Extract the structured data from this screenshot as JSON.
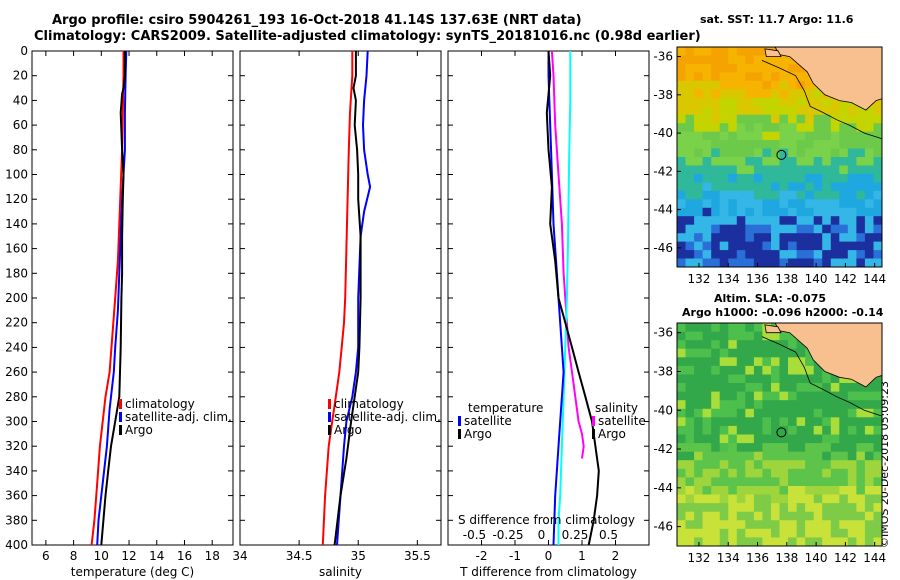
{
  "header": {
    "line1": "Argo profile: csiro 5904261_193 16-Oct-2018 41.14S 137.63E (NRT data)",
    "line2": "Climatology: CARS2009. Satellite-adjusted climatology: synTS_20181016.nc (0.98d earlier)"
  },
  "credit": "©IMOS 20-Dec-2018 05:09:23",
  "colors": {
    "climatology": "#ff0000",
    "satellite": "#0000ff",
    "argo": "#000000",
    "t_diff_clim": "#ff00ff",
    "t_diff_sat": "#00ffff",
    "land": "#f9c08f"
  },
  "chart_data": [
    {
      "type": "line",
      "id": "temperature",
      "xlabel": "temperature (deg C)",
      "xlim": [
        5,
        19.5
      ],
      "ylim": [
        0,
        400
      ],
      "xticks": [
        "6",
        "8",
        "10",
        "12",
        "14",
        "16",
        "18"
      ],
      "xtick_values": [
        6,
        8,
        10,
        12,
        14,
        16,
        18
      ],
      "yticks": [
        "0",
        "20",
        "40",
        "60",
        "80",
        "100",
        "120",
        "140",
        "160",
        "180",
        "200",
        "220",
        "240",
        "260",
        "280",
        "300",
        "320",
        "340",
        "360",
        "380",
        "400"
      ],
      "legend": [
        "climatology",
        "satellite-adj. clim.",
        "Argo"
      ],
      "series": [
        {
          "name": "climatology",
          "color": "#ff0000",
          "x": [
            11.6,
            11.6,
            11.55,
            11.5,
            11.4,
            11.3,
            11.2,
            11.0,
            10.8,
            10.6,
            10.3,
            10.1,
            9.9,
            9.7,
            9.5,
            9.3
          ],
          "y": [
            0,
            20,
            50,
            80,
            110,
            140,
            170,
            200,
            230,
            260,
            280,
            300,
            320,
            350,
            380,
            400
          ]
        },
        {
          "name": "satellite-adj. clim.",
          "color": "#0000ff",
          "x": [
            11.8,
            11.75,
            11.7,
            11.7,
            11.6,
            11.5,
            11.4,
            11.3,
            11.2,
            11.0,
            10.9,
            10.6,
            10.4,
            10.2,
            10.0,
            9.8,
            9.7
          ],
          "y": [
            0,
            20,
            50,
            80,
            100,
            120,
            150,
            180,
            210,
            240,
            260,
            290,
            320,
            340,
            360,
            380,
            400
          ]
        },
        {
          "name": "Argo",
          "color": "#000000",
          "x": [
            11.7,
            11.7,
            11.6,
            11.5,
            11.4,
            11.5,
            11.6,
            11.55,
            11.5,
            11.5,
            11.45,
            11.4,
            11.3,
            11.0,
            10.7,
            10.5,
            10.3,
            10.0
          ],
          "y": [
            0,
            20,
            30,
            35,
            50,
            80,
            100,
            120,
            150,
            180,
            200,
            240,
            280,
            300,
            320,
            340,
            360,
            400
          ]
        }
      ]
    },
    {
      "type": "line",
      "id": "salinity",
      "xlabel": "salinity",
      "xlim": [
        34,
        35.7
      ],
      "ylim": [
        0,
        400
      ],
      "xticks": [
        "34",
        "34.5",
        "35",
        "35.5"
      ],
      "xtick_values": [
        34,
        34.5,
        35,
        35.5
      ],
      "legend": [
        "climatology",
        "satellite-adj. clim.",
        "Argo"
      ],
      "series": [
        {
          "name": "climatology",
          "color": "#ff0000",
          "x": [
            34.95,
            34.95,
            34.93,
            34.92,
            34.91,
            34.9,
            34.89,
            34.88,
            34.86,
            34.84,
            34.81,
            34.78,
            34.75,
            34.72,
            34.7
          ],
          "y": [
            0,
            20,
            50,
            80,
            120,
            160,
            200,
            220,
            240,
            260,
            280,
            300,
            320,
            360,
            400
          ]
        },
        {
          "name": "satellite-adj. clim.",
          "color": "#0000ff",
          "x": [
            35.08,
            35.07,
            35.05,
            35.04,
            35.05,
            35.08,
            35.1,
            35.05,
            35.02,
            35.0,
            35.0,
            34.98,
            34.95,
            34.9,
            34.88,
            34.85,
            34.82
          ],
          "y": [
            0,
            20,
            40,
            60,
            80,
            100,
            110,
            130,
            150,
            200,
            240,
            260,
            280,
            300,
            320,
            360,
            400
          ]
        },
        {
          "name": "Argo",
          "color": "#000000",
          "x": [
            34.98,
            34.98,
            34.96,
            34.98,
            34.97,
            34.99,
            35.0,
            35.0,
            35.02,
            35.02,
            35.01,
            35.0,
            34.97,
            34.94,
            34.9,
            34.85,
            34.8
          ],
          "y": [
            0,
            20,
            30,
            40,
            60,
            80,
            100,
            120,
            150,
            200,
            240,
            260,
            280,
            300,
            330,
            360,
            400
          ]
        }
      ]
    },
    {
      "type": "line",
      "id": "difference",
      "xlabel": "T difference from climatology",
      "secondary_xlabel": "S difference from climatology",
      "xlim": [
        -3,
        3
      ],
      "ylim": [
        0,
        400
      ],
      "xticks": [
        "-2",
        "-1",
        "0",
        "1",
        "2"
      ],
      "xtick_values": [
        -2,
        -1,
        0,
        1,
        2
      ],
      "secondary_xticks": [
        "-0.5",
        "-0.25",
        "0",
        "0.25",
        "0.5"
      ],
      "secondary_xtick_values": [
        -0.5,
        -0.25,
        0,
        0.25,
        0.5
      ],
      "legend_left_title": "temperature",
      "legend_right_title": "salinity",
      "legend_left": [
        "satellite",
        "Argo"
      ],
      "legend_right": [
        "satellite",
        "Argo"
      ],
      "series": [
        {
          "name": "T diff satellite (climatology)",
          "color": "#ff00ff",
          "x": [
            0.1,
            0.15,
            0.2,
            0.3,
            0.4,
            0.45,
            0.5,
            0.55,
            0.6,
            0.7,
            0.8,
            0.9,
            1.0,
            1.05,
            1.0
          ],
          "y": [
            0,
            20,
            60,
            100,
            140,
            180,
            200,
            220,
            240,
            260,
            280,
            300,
            310,
            320,
            330
          ]
        },
        {
          "name": "S diff satellite",
          "color": "#00ffff",
          "x": [
            0.65,
            0.65,
            0.62,
            0.6,
            0.58,
            0.55,
            0.5,
            0.45,
            0.4,
            0.35,
            0.3,
            0.3
          ],
          "y": [
            0,
            40,
            80,
            120,
            160,
            200,
            240,
            280,
            320,
            360,
            380,
            400
          ]
        },
        {
          "name": "T diff satellite",
          "color": "#0000ff",
          "x": [
            0.0,
            0.0,
            0.05,
            0.1,
            0.15,
            0.25,
            0.3,
            0.35,
            0.4,
            0.45,
            0.4,
            0.35,
            0.3,
            0.2,
            0.15
          ],
          "y": [
            0,
            20,
            60,
            100,
            140,
            180,
            200,
            220,
            240,
            260,
            280,
            300,
            320,
            360,
            400
          ]
        },
        {
          "name": "Argo",
          "color": "#000000",
          "x": [
            0.0,
            0.05,
            -0.05,
            0.0,
            0.1,
            0.05,
            0.2,
            0.3,
            0.5,
            0.7,
            0.9,
            1.1,
            1.3,
            1.4,
            1.5,
            1.45,
            1.35,
            1.2
          ],
          "y": [
            0,
            20,
            50,
            80,
            110,
            140,
            170,
            200,
            220,
            240,
            260,
            280,
            300,
            320,
            340,
            360,
            380,
            400
          ]
        }
      ]
    }
  ],
  "maps": [
    {
      "id": "sst-map",
      "title": "sat. SST: 11.7 Argo: 11.6",
      "xticks": [
        "132",
        "134",
        "136",
        "138",
        "140",
        "142",
        "144"
      ],
      "yticks": [
        "-36",
        "-38",
        "-40",
        "-42",
        "-44",
        "-46"
      ],
      "xlim": [
        130.5,
        144.5
      ],
      "ylim": [
        -47,
        -35.5
      ],
      "marker": {
        "lon": 137.63,
        "lat": -41.14
      }
    },
    {
      "id": "sla-map",
      "title": "Altim. SLA: -0.075",
      "subtitle": "Argo h1000: -0.096 h2000: -0.14",
      "xticks": [
        "132",
        "134",
        "136",
        "138",
        "140",
        "142",
        "144"
      ],
      "yticks": [
        "-36",
        "-38",
        "-40",
        "-42",
        "-44",
        "-46"
      ],
      "xlim": [
        130.5,
        144.5
      ],
      "ylim": [
        -47,
        -35.5
      ],
      "marker": {
        "lon": 137.63,
        "lat": -41.14
      }
    }
  ]
}
